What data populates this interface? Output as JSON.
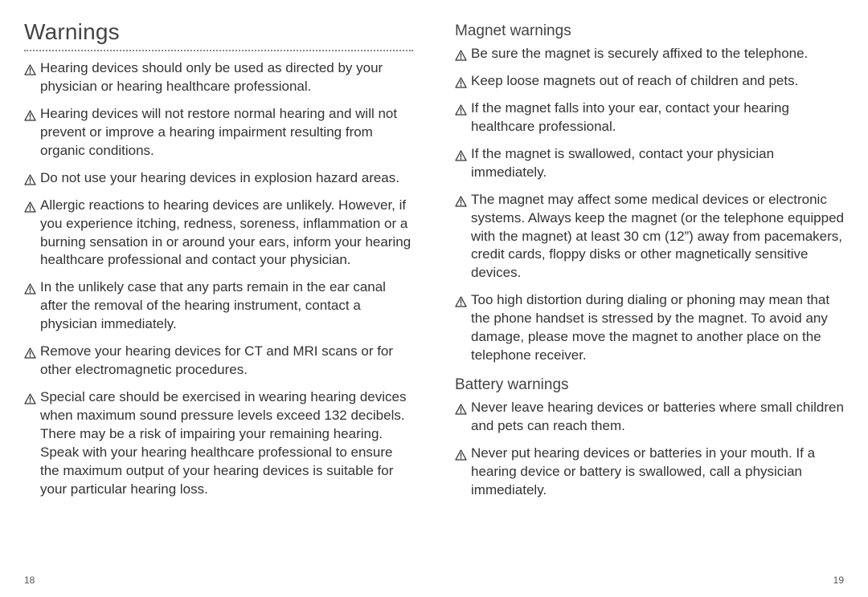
{
  "left": {
    "heading": "Warnings",
    "items": [
      "Hearing devices should only be used as directed by your physician or hearing healthcare professional.",
      "Hearing devices will not restore normal hearing and will not prevent or improve a hearing impairment resulting from organic conditions.",
      "Do not use your hearing devices in explosion hazard areas.",
      "Allergic reactions to hearing devices are unlikely. However, if you experience itching, redness, soreness, inflammation or a burning sensation in or around your ears, inform your hearing healthcare professional and contact your physician.",
      "In the unlikely case that any parts remain in the ear canal after the removal of the hearing instrument, contact a physician immediately.",
      "Remove your hearing devices for CT and MRI scans or for other electromagnetic procedures.",
      "Special care should be exercised in wearing hearing devices when maximum sound pressure levels exceed 132 decibels. There may be a risk of impairing your remaining hearing. Speak with your hearing healthcare professional to ensure the maximum output of your hearing devices is suitable for your particular hearing loss."
    ],
    "pageNumber": "18"
  },
  "right": {
    "sections": [
      {
        "heading": "Magnet warnings",
        "items": [
          "Be sure the magnet is securely affixed to the telephone.",
          "Keep loose magnets out of reach of children and pets.",
          "If the magnet falls into your ear, contact your hearing healthcare professional.",
          "If the magnet is swallowed, contact your physician immediately.",
          "The magnet may affect some medical devices or electronic systems. Always keep the magnet (or the telephone equipped with the magnet) at least 30 cm (12”) away from pacemakers, credit cards, floppy disks or other magnetically sensitive devices.",
          "Too high distortion during dialing or phoning may mean that the phone handset is stressed by the magnet. To avoid any damage, please move the magnet to another place on the telephone receiver."
        ]
      },
      {
        "heading": "Battery warnings",
        "items": [
          "Never leave hearing devices or batteries where small children and pets can reach them.",
          "Never put hearing devices or batteries in your mouth. If a hearing device or battery is swallowed, call a physician immediately."
        ]
      }
    ],
    "pageNumber": "19"
  },
  "style": {
    "text_color": "#333333",
    "heading_color": "#444444",
    "divider_color": "#888888",
    "background_color": "#ffffff",
    "main_heading_fontsize": 28,
    "sub_heading_fontsize": 19,
    "body_fontsize": 17,
    "page_number_fontsize": 12,
    "icon_stroke": "#333333"
  }
}
